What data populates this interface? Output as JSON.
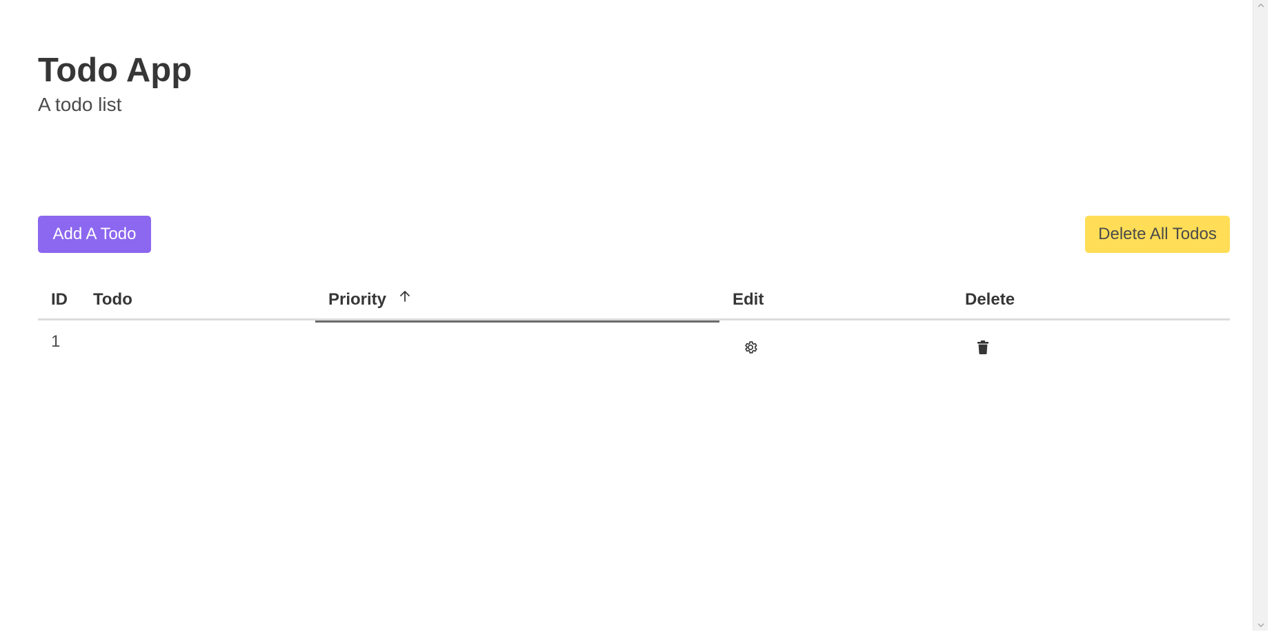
{
  "header": {
    "title": "Todo App",
    "subtitle": "A todo list"
  },
  "actions": {
    "add_label": "Add A Todo",
    "delete_all_label": "Delete All Todos"
  },
  "colors": {
    "primary": "#8c67ef",
    "warning": "#ffdd57"
  },
  "table": {
    "columns": {
      "id": "ID",
      "todo": "Todo",
      "priority": "Priority",
      "edit": "Edit",
      "delete": "Delete"
    },
    "sort": {
      "column": "priority",
      "direction": "ascending",
      "icon": "arrow-up-icon"
    },
    "rows": [
      {
        "id": "1",
        "todo": "",
        "priority": "",
        "edit_icon": "gear-icon",
        "delete_icon": "trash-icon"
      }
    ]
  }
}
